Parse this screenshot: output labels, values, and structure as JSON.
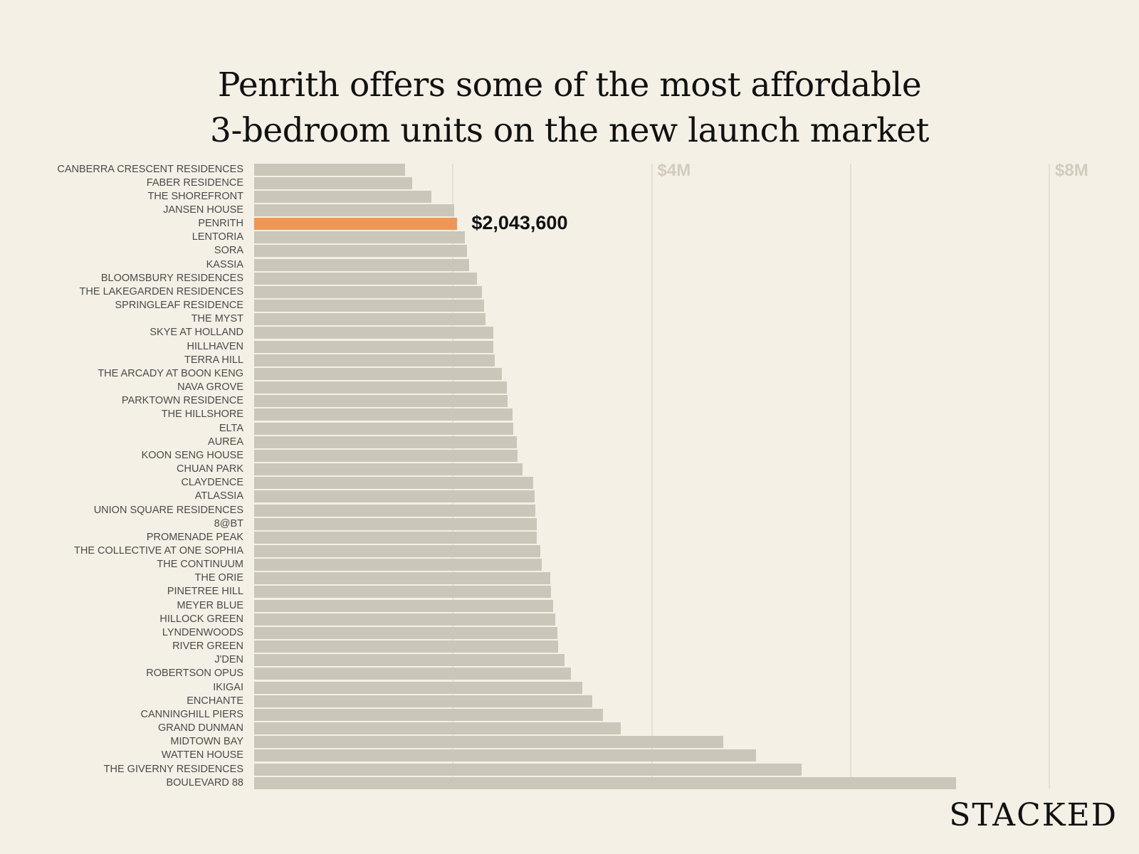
{
  "chart_data": {
    "type": "bar",
    "orientation": "horizontal",
    "title": [
      "Penrith offers some of the most affordable",
      "3-bedroom units on the new launch market"
    ],
    "xlabel": "",
    "ylabel": "",
    "xlim": [
      0,
      8000000
    ],
    "x_ticks": [
      {
        "value": 4000000,
        "label": "$4M"
      },
      {
        "value": 8000000,
        "label": "$8M"
      }
    ],
    "gridlines": [
      2000000,
      4000000,
      6000000,
      8000000
    ],
    "highlight": {
      "category": "PENRITH",
      "label": "$2,043,600",
      "color": "#ee9657"
    },
    "bar_color": "#cbc6ba",
    "categories": [
      "CANBERRA CRESCENT RESIDENCES",
      "FABER RESIDENCE",
      "THE SHOREFRONT",
      "JANSEN HOUSE",
      "PENRITH",
      "LENTORIA",
      "SORA",
      "KASSIA",
      "BLOOMSBURY RESIDENCES",
      "THE LAKEGARDEN RESIDENCES",
      "SPRINGLEAF RESIDENCE",
      "THE MYST",
      "SKYE AT HOLLAND",
      "HILLHAVEN",
      "TERRA HILL",
      "THE ARCADY AT BOON KENG",
      "NAVA GROVE",
      "PARKTOWN RESIDENCE",
      "THE HILLSHORE",
      "ELTA",
      "AUREA",
      "KOON SENG HOUSE",
      "CHUAN PARK",
      "CLAYDENCE",
      "ATLASSIA",
      "UNION SQUARE RESIDENCES",
      "8@BT",
      "PROMENADE PEAK",
      "THE COLLECTIVE AT ONE SOPHIA",
      "THE CONTINUUM",
      "THE ORIE",
      "PINETREE HILL",
      "MEYER BLUE",
      "HILLOCK GREEN",
      "LYNDENWOODS",
      "RIVER GREEN",
      "J'DEN",
      "ROBERTSON OPUS",
      "IKIGAI",
      "ENCHANTE",
      "CANNINGHILL PIERS",
      "GRAND DUNMAN",
      "MIDTOWN BAY",
      "WATTEN HOUSE",
      "THE GIVERNY RESIDENCES",
      "BOULEVARD 88"
    ],
    "values": [
      1520000,
      1590000,
      1780000,
      2010000,
      2043600,
      2120000,
      2140000,
      2160000,
      2240000,
      2290000,
      2310000,
      2330000,
      2410000,
      2410000,
      2420000,
      2490000,
      2540000,
      2550000,
      2600000,
      2610000,
      2640000,
      2650000,
      2700000,
      2810000,
      2820000,
      2830000,
      2840000,
      2840000,
      2880000,
      2890000,
      2980000,
      2990000,
      3010000,
      3030000,
      3050000,
      3060000,
      3120000,
      3190000,
      3300000,
      3400000,
      3510000,
      3690000,
      4720000,
      5050000,
      5510000,
      7060000
    ]
  },
  "brand": "STACKED"
}
